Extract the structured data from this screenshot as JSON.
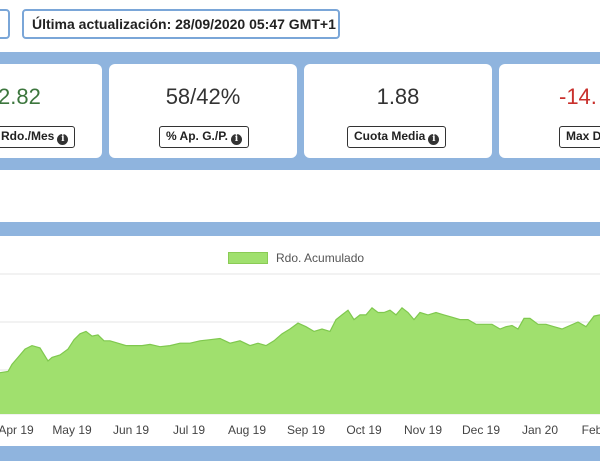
{
  "update": {
    "text": "Última actualización: 28/09/2020 05:47 GMT+1"
  },
  "kpis": [
    {
      "value": "2.82",
      "label": "Rdo./Mes",
      "color": "green"
    },
    {
      "value": "58/42%",
      "label": "% Ap. G./P.",
      "color": "neutral"
    },
    {
      "value": "1.88",
      "label": "Cuota Media",
      "color": "neutral"
    },
    {
      "value": "-14.",
      "label": "Max D",
      "color": "red"
    }
  ],
  "chart_data": {
    "type": "area",
    "title": "",
    "legend": [
      "Rdo. Acumulado"
    ],
    "legend_position": "top",
    "grid": true,
    "x_tick_labels": [
      "Apr 19",
      "May 19",
      "Jun 19",
      "Jul 19",
      "Aug 19",
      "Sep 19",
      "Oct 19",
      "Nov 19",
      "Dec 19",
      "Jan 20",
      "Feb"
    ],
    "series": [
      {
        "name": "Rdo. Acumulado",
        "color": "#a0e06e",
        "x": [
          0,
          8,
          12,
          18,
          25,
          32,
          40,
          48,
          52,
          60,
          68,
          74,
          80,
          86,
          92,
          98,
          104,
          110,
          118,
          126,
          134,
          142,
          150,
          160,
          170,
          180,
          190,
          200,
          210,
          220,
          230,
          240,
          250,
          258,
          266,
          274,
          282,
          290,
          298,
          306,
          314,
          322,
          330,
          336,
          342,
          348,
          354,
          360,
          366,
          372,
          378,
          384,
          390,
          396,
          402,
          408,
          414,
          420,
          428,
          436,
          444,
          452,
          460,
          468,
          476,
          484,
          492,
          500,
          506,
          512,
          518,
          524,
          530,
          538,
          546,
          554,
          562,
          570,
          578,
          586,
          594,
          600
        ],
        "y": [
          0.35,
          0.36,
          0.42,
          0.48,
          0.55,
          0.58,
          0.56,
          0.45,
          0.48,
          0.5,
          0.55,
          0.63,
          0.68,
          0.7,
          0.66,
          0.67,
          0.62,
          0.62,
          0.6,
          0.58,
          0.58,
          0.58,
          0.59,
          0.57,
          0.58,
          0.6,
          0.6,
          0.62,
          0.63,
          0.64,
          0.6,
          0.62,
          0.58,
          0.6,
          0.58,
          0.62,
          0.68,
          0.72,
          0.77,
          0.74,
          0.7,
          0.72,
          0.7,
          0.8,
          0.84,
          0.88,
          0.8,
          0.84,
          0.84,
          0.9,
          0.86,
          0.86,
          0.88,
          0.84,
          0.9,
          0.86,
          0.8,
          0.86,
          0.84,
          0.86,
          0.84,
          0.82,
          0.8,
          0.8,
          0.76,
          0.76,
          0.76,
          0.72,
          0.74,
          0.75,
          0.72,
          0.81,
          0.81,
          0.76,
          0.76,
          0.74,
          0.72,
          0.75,
          0.78,
          0.74,
          0.83,
          0.84
        ]
      }
    ]
  }
}
